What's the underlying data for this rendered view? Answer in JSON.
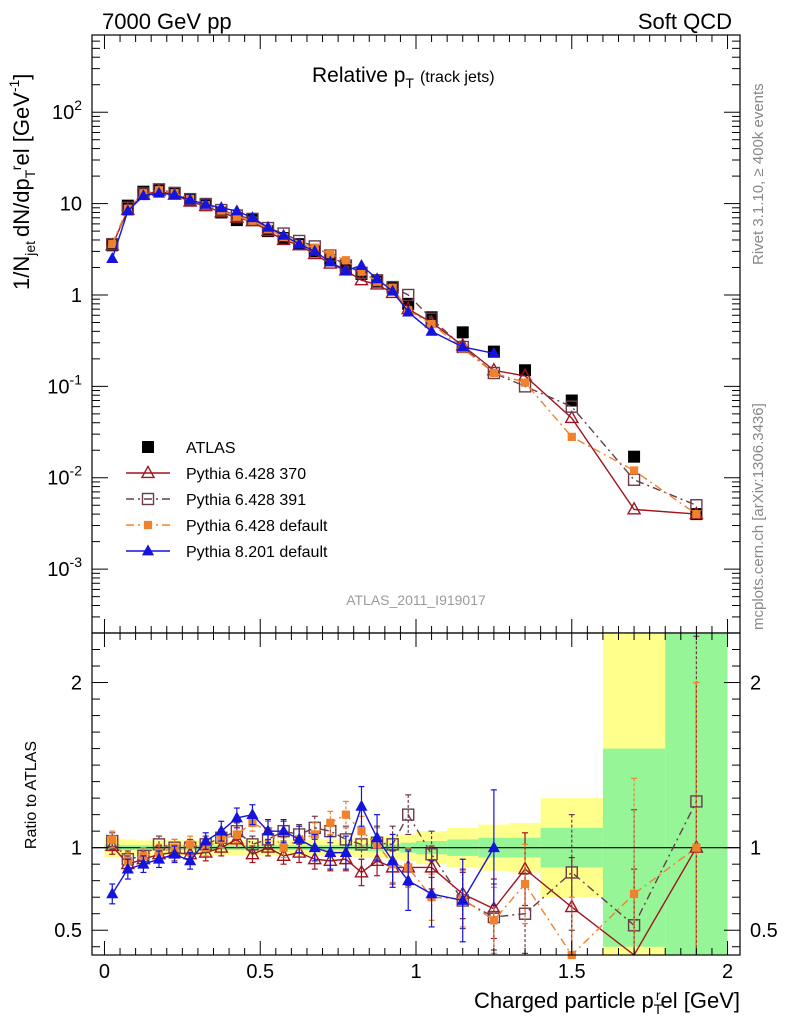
{
  "header": {
    "left": "7000 GeV pp",
    "right": "Soft QCD"
  },
  "side_text": {
    "rivet": "Rivet 3.1.10, ≥ 400k events",
    "mcplots": "mcplots.cern.ch [arXiv:1306.3436]"
  },
  "chart_data": {
    "type": "scatter",
    "title": "Relative p",
    "title_sub": "T",
    "title_extra": "(track jets)",
    "analysis_label": "ATLAS_2011_I919017",
    "xlabel": "Charged particle p",
    "xlabel_sub": "T",
    "xlabel_sup": "r",
    "xlabel_unit": "el [GeV]",
    "ylabel_main": "1/N",
    "ylabel_main_sub": "jet",
    "ylabel_main_mid": "dN/dp",
    "ylabel_main_sub2": "T",
    "ylabel_main_sup2": "r",
    "ylabel_main_tail": "el [GeV",
    "ylabel_main_unit_sup": "-1",
    "ylabel_ratio": "Ratio to ATLAS",
    "xlim": [
      -0.04,
      2.04
    ],
    "ylim_main": [
      0.0002,
      700
    ],
    "yscale_main": "log",
    "ylim_ratio": [
      0.35,
      2.3
    ],
    "x_ticks": [
      "0",
      "0.5",
      "1",
      "1.5",
      "2"
    ],
    "y_ticks_main": [
      {
        "v": 0.001,
        "base": "10",
        "exp": "-3"
      },
      {
        "v": 0.01,
        "base": "10",
        "exp": "-2"
      },
      {
        "v": 0.1,
        "base": "10",
        "exp": "-1"
      },
      {
        "v": 1,
        "base": "1",
        "exp": ""
      },
      {
        "v": 10,
        "base": "10",
        "exp": ""
      },
      {
        "v": 100,
        "base": "10",
        "exp": "2"
      }
    ],
    "y_ticks_ratio": [
      "0.5",
      "1",
      "2"
    ],
    "legend_position": "bottom-left",
    "x": [
      0.025,
      0.075,
      0.125,
      0.175,
      0.225,
      0.275,
      0.325,
      0.375,
      0.425,
      0.475,
      0.525,
      0.575,
      0.625,
      0.675,
      0.725,
      0.775,
      0.825,
      0.875,
      0.925,
      0.975,
      1.05,
      1.15,
      1.25,
      1.35,
      1.5,
      1.7,
      1.9
    ],
    "bands": {
      "x_edges": [
        0.0,
        0.05,
        0.1,
        0.15,
        0.2,
        0.25,
        0.3,
        0.35,
        0.4,
        0.45,
        0.5,
        0.55,
        0.6,
        0.65,
        0.7,
        0.75,
        0.8,
        0.85,
        0.9,
        0.95,
        1.0,
        1.1,
        1.2,
        1.3,
        1.4,
        1.6,
        1.8,
        2.0
      ],
      "green_halfwidth": [
        0.02,
        0.015,
        0.015,
        0.015,
        0.015,
        0.015,
        0.015,
        0.015,
        0.015,
        0.015,
        0.015,
        0.015,
        0.015,
        0.015,
        0.015,
        0.015,
        0.02,
        0.02,
        0.02,
        0.03,
        0.04,
        0.05,
        0.06,
        0.06,
        0.12,
        0.6,
        1.7
      ],
      "yellow_halfwidth": [
        0.06,
        0.05,
        0.045,
        0.045,
        0.045,
        0.045,
        0.045,
        0.045,
        0.045,
        0.045,
        0.045,
        0.045,
        0.05,
        0.05,
        0.05,
        0.05,
        0.06,
        0.06,
        0.07,
        0.08,
        0.1,
        0.12,
        0.14,
        0.15,
        0.3,
        1.3,
        2.5
      ]
    },
    "series": [
      {
        "name": "ATLAS",
        "color": "#000000",
        "marker": "square-filled",
        "line": "none",
        "y": [
          3.5,
          9.5,
          13.5,
          14.3,
          13.0,
          11.0,
          9.6,
          8.0,
          6.6,
          6.7,
          5.0,
          4.2,
          3.6,
          3.0,
          2.4,
          2.0,
          1.7,
          1.4,
          1.2,
          0.8,
          0.57,
          0.39,
          0.24,
          0.15,
          0.07,
          0.017,
          0.004
        ],
        "ratio": [
          1,
          1,
          1,
          1,
          1,
          1,
          1,
          1,
          1,
          1,
          1,
          1,
          1,
          1,
          1,
          1,
          1,
          1,
          1,
          1,
          1,
          1,
          1,
          1,
          1,
          1,
          1
        ]
      },
      {
        "name": "Pythia 6.428 370",
        "color": "#a0141e",
        "marker": "triangle-open",
        "line": "solid",
        "y": [
          3.5,
          8.5,
          12.5,
          13.7,
          12.5,
          10.5,
          9.4,
          8.0,
          7.0,
          6.4,
          5.0,
          4.0,
          3.5,
          2.8,
          2.2,
          1.85,
          1.45,
          1.3,
          1.05,
          0.7,
          0.5,
          0.28,
          0.15,
          0.13,
          0.045,
          0.0045,
          0.004
        ],
        "ratio": [
          1.01,
          0.9,
          0.93,
          0.96,
          0.97,
          0.96,
          0.97,
          1.0,
          1.05,
          0.96,
          1.0,
          0.95,
          0.97,
          0.93,
          0.92,
          0.93,
          0.85,
          0.92,
          0.88,
          0.88,
          0.88,
          0.72,
          0.63,
          0.87,
          0.64,
          0.27,
          1.0
        ],
        "ratio_err": [
          0.05,
          0.05,
          0.05,
          0.05,
          0.05,
          0.05,
          0.05,
          0.05,
          0.05,
          0.05,
          0.05,
          0.05,
          0.06,
          0.06,
          0.06,
          0.07,
          0.08,
          0.09,
          0.1,
          0.11,
          0.13,
          0.15,
          0.18,
          0.22,
          0.3,
          0.6,
          1.0
        ]
      },
      {
        "name": "Pythia 6.428 391",
        "color": "#6b3b4c",
        "marker": "square-open",
        "line": "dashdot",
        "y": [
          3.6,
          9.0,
          12.9,
          14.3,
          13.1,
          11.2,
          9.9,
          8.5,
          7.4,
          6.8,
          5.4,
          4.7,
          3.9,
          3.4,
          2.7,
          2.1,
          1.75,
          1.45,
          1.22,
          1.0,
          0.55,
          0.27,
          0.14,
          0.1,
          0.06,
          0.0095,
          0.005
        ],
        "ratio": [
          1.04,
          0.93,
          0.95,
          1.02,
          1.0,
          1.0,
          1.02,
          1.06,
          1.1,
          1.02,
          1.05,
          1.1,
          1.08,
          1.12,
          1.1,
          1.05,
          1.02,
          1.03,
          1.02,
          1.2,
          0.96,
          0.68,
          0.58,
          0.6,
          0.85,
          0.53,
          1.28
        ],
        "ratio_err": [
          0.05,
          0.05,
          0.05,
          0.05,
          0.05,
          0.05,
          0.05,
          0.05,
          0.05,
          0.05,
          0.06,
          0.06,
          0.06,
          0.07,
          0.07,
          0.08,
          0.09,
          0.1,
          0.11,
          0.12,
          0.14,
          0.17,
          0.2,
          0.24,
          0.35,
          0.7,
          1.0
        ]
      },
      {
        "name": "Pythia 6.428 default",
        "color": "#f0822e",
        "marker": "square-filled-small",
        "line": "dashdot",
        "y": [
          3.6,
          8.8,
          13.0,
          14.0,
          13.0,
          11.2,
          9.6,
          8.4,
          7.2,
          6.5,
          5.3,
          4.3,
          3.6,
          3.3,
          2.8,
          2.4,
          1.8,
          1.4,
          1.2,
          0.68,
          0.48,
          0.26,
          0.14,
          0.11,
          0.028,
          0.012,
          0.004
        ],
        "ratio": [
          1.05,
          0.92,
          0.95,
          0.97,
          1.0,
          1.02,
          1.0,
          1.05,
          1.08,
          1.15,
          1.1,
          1.0,
          1.05,
          1.08,
          1.15,
          1.2,
          1.1,
          1.02,
          0.9,
          0.88,
          0.7,
          0.69,
          0.56,
          0.78,
          0.35,
          0.72,
          1.0
        ],
        "ratio_err": [
          0.05,
          0.05,
          0.05,
          0.05,
          0.05,
          0.05,
          0.05,
          0.05,
          0.05,
          0.05,
          0.06,
          0.06,
          0.06,
          0.07,
          0.07,
          0.08,
          0.09,
          0.1,
          0.11,
          0.12,
          0.14,
          0.17,
          0.2,
          0.24,
          0.35,
          0.7,
          1.0
        ]
      },
      {
        "name": "Pythia 8.201 default",
        "color": "#1414dc",
        "marker": "triangle-filled",
        "line": "solid",
        "y": [
          2.5,
          8.3,
          12.2,
          13.0,
          12.5,
          11.0,
          9.8,
          9.0,
          8.3,
          7.0,
          5.5,
          4.5,
          3.6,
          3.0,
          2.3,
          1.85,
          2.1,
          1.5,
          1.1,
          0.65,
          0.4,
          0.27,
          0.23,
          null,
          null,
          null,
          null
        ],
        "ratio": [
          0.72,
          0.87,
          0.9,
          0.93,
          0.96,
          0.92,
          1.04,
          1.1,
          1.18,
          1.2,
          1.1,
          1.1,
          1.05,
          1.0,
          0.97,
          0.97,
          1.25,
          1.06,
          0.92,
          0.8,
          0.72,
          0.68,
          1.0,
          null,
          null,
          null,
          null
        ],
        "ratio_err": [
          0.06,
          0.06,
          0.05,
          0.05,
          0.05,
          0.05,
          0.05,
          0.06,
          0.06,
          0.06,
          0.07,
          0.07,
          0.08,
          0.08,
          0.1,
          0.1,
          0.12,
          0.14,
          0.16,
          0.18,
          0.2,
          0.25,
          0.35,
          null,
          null,
          null,
          null
        ]
      }
    ]
  }
}
